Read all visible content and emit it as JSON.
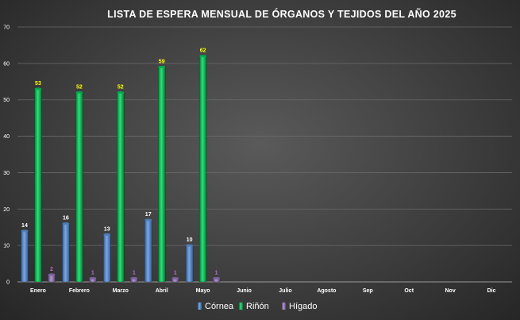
{
  "chart_data": {
    "type": "bar",
    "title": "LISTA DE ESPERA MENSUAL DE ÓRGANOS Y TEJIDOS  DEL AÑO 2025",
    "xlabel": "",
    "ylabel": "",
    "categories": [
      "Enero",
      "Febrero",
      "Marzo",
      "Abril",
      "Mayo",
      "Junio",
      "Julio",
      "Agosto",
      "Sep",
      "Oct",
      "Nov",
      "Dic"
    ],
    "series": [
      {
        "name": "Córnea",
        "color": "#4f81bd",
        "label_color": "#ffffff",
        "values": [
          14,
          16,
          13,
          17,
          10,
          null,
          null,
          null,
          null,
          null,
          null,
          null
        ]
      },
      {
        "name": "Riñón",
        "color": "#00b050",
        "label_color": "#ffff00",
        "values": [
          53,
          52,
          52,
          59,
          62,
          null,
          null,
          null,
          null,
          null,
          null,
          null
        ]
      },
      {
        "name": "Hígado",
        "color": "#8064a2",
        "label_color": "#b36bd6",
        "values": [
          2,
          1,
          1,
          1,
          1,
          null,
          null,
          null,
          null,
          null,
          null,
          null
        ]
      }
    ],
    "ylim": [
      0,
      70
    ],
    "yticks": [
      0,
      10,
      20,
      30,
      40,
      50,
      60,
      70
    ],
    "grid": true,
    "legend_position": "bottom"
  }
}
